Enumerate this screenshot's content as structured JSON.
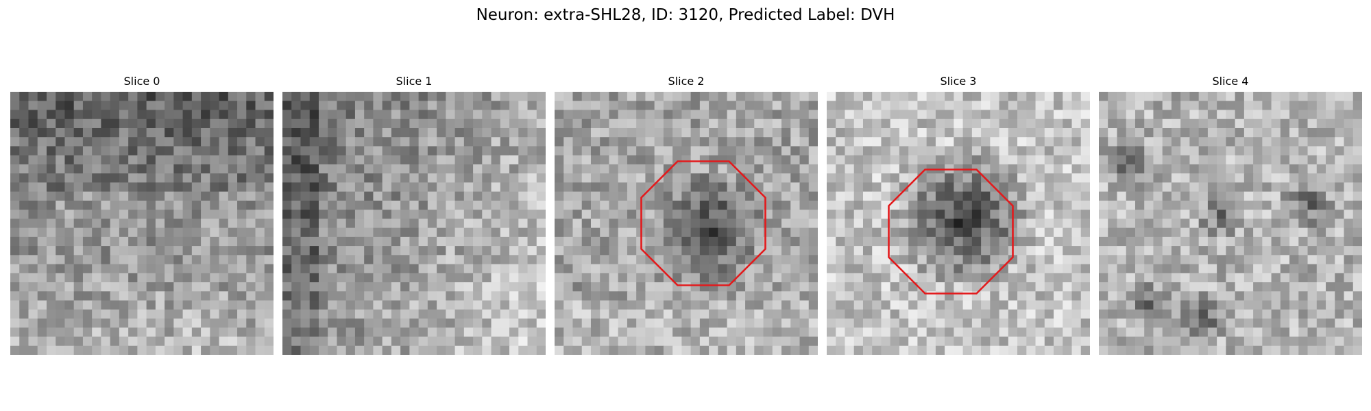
{
  "figure": {
    "title": "Neuron: extra-SHL28, ID: 3120, Predicted Label: DVH"
  },
  "panels": [
    {
      "title": "Slice 0",
      "has_outline": false
    },
    {
      "title": "Slice 1",
      "has_outline": false
    },
    {
      "title": "Slice 2",
      "has_outline": true
    },
    {
      "title": "Slice 3",
      "has_outline": true
    },
    {
      "title": "Slice 4",
      "has_outline": false
    }
  ],
  "colors": {
    "outline": "#e31a1c",
    "background": "#ffffff"
  }
}
